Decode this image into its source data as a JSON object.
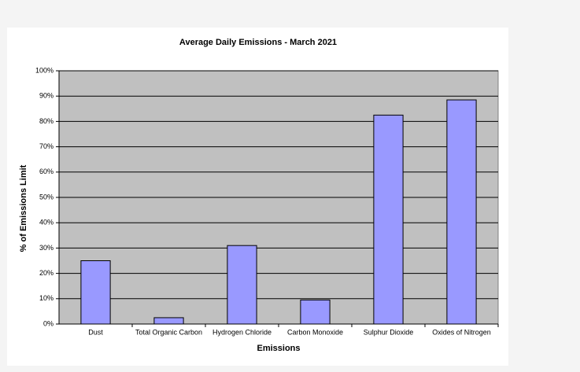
{
  "chart_data": {
    "type": "bar",
    "title": "Average Daily Emissions - March 2021",
    "x_label": "Emissions",
    "y_label": "% of Emissions Limit",
    "categories": [
      "Dust",
      "Total Organic Carbon",
      "Hydrogen Chloride",
      "Carbon Monoxide",
      "Sulphur Dioxide",
      "Oxides of Nitrogen"
    ],
    "values": [
      25,
      2.5,
      31,
      9.5,
      82.5,
      88.5
    ],
    "color": "#9999ff",
    "ylim": [
      0,
      100
    ],
    "yticks": [
      {
        "value": 0,
        "label": "0%"
      },
      {
        "value": 10,
        "label": "10%"
      },
      {
        "value": 20,
        "label": "20%"
      },
      {
        "value": 30,
        "label": "30%"
      },
      {
        "value": 40,
        "label": "40%"
      },
      {
        "value": 50,
        "label": "50%"
      },
      {
        "value": 60,
        "label": "60%"
      },
      {
        "value": 70,
        "label": "70%"
      },
      {
        "value": 80,
        "label": "80%"
      },
      {
        "value": 90,
        "label": "90%"
      },
      {
        "value": 100,
        "label": "100%"
      }
    ],
    "grid": true
  }
}
